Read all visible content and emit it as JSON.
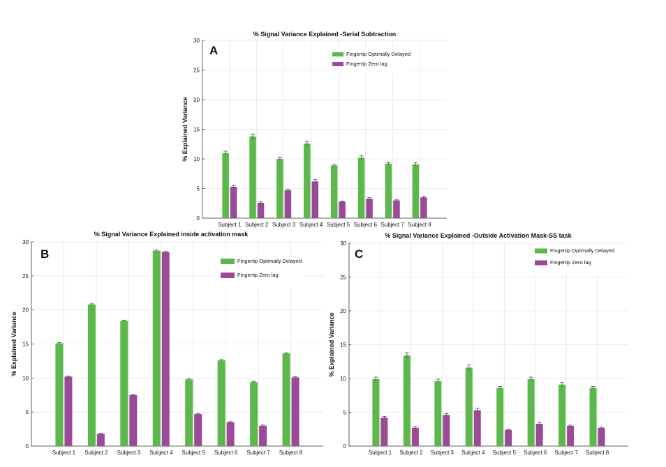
{
  "figure": {
    "colors": {
      "series_1": "#5cb84a",
      "series_2": "#9a4a97",
      "grid": "#dcdcdc",
      "axis": "#333333"
    }
  },
  "chart_data": [
    {
      "panel": "A",
      "type": "bar",
      "title": "% Signal Variance Explained -Serial Subtraction",
      "xlabel": "",
      "ylabel": "% Explained Variance",
      "ylim": [
        0,
        30
      ],
      "yticks": [
        0,
        5,
        10,
        15,
        20,
        25,
        30
      ],
      "grid": true,
      "legend_position": "top-right",
      "categories": [
        "Subject 1",
        "Subject 2",
        "Subject 3",
        "Subject 4",
        "Subject 5",
        "Subject 6",
        "Subject 7",
        "Subject 8"
      ],
      "series": [
        {
          "name": "Fingertip Optimally Delayed",
          "values": [
            11.0,
            13.8,
            10.0,
            12.6,
            8.9,
            10.2,
            9.2,
            9.1
          ],
          "errors": [
            0.3,
            0.4,
            0.3,
            0.4,
            0.2,
            0.3,
            0.2,
            0.3
          ]
        },
        {
          "name": "Fingertip Zero lag",
          "values": [
            5.3,
            2.6,
            4.7,
            6.2,
            2.8,
            3.3,
            3.0,
            3.5
          ],
          "errors": [
            0.2,
            0.2,
            0.2,
            0.3,
            0.1,
            0.2,
            0.1,
            0.2
          ]
        }
      ]
    },
    {
      "panel": "B",
      "type": "bar",
      "title": "% Signal Variance Explained inside activation mask",
      "xlabel": "",
      "ylabel": "% Explained Variance",
      "ylim": [
        0,
        30
      ],
      "yticks": [
        0,
        5,
        10,
        15,
        20,
        25,
        30
      ],
      "grid": true,
      "legend_position": "top-right",
      "categories": [
        "Subject 1",
        "Subject 2",
        "Subject 3",
        "Subject 4",
        "Subject 5",
        "Subject 6",
        "Subject 7",
        "Subject 8"
      ],
      "series": [
        {
          "name": "Fingertip Optimally Delayed",
          "values": [
            15.1,
            20.8,
            18.4,
            28.7,
            9.8,
            12.6,
            9.4,
            13.6
          ],
          "errors": [
            0.1,
            0.1,
            0.1,
            0.1,
            0.1,
            0.1,
            0.1,
            0.1
          ]
        },
        {
          "name": "Fingertip Zero lag",
          "values": [
            10.2,
            1.8,
            7.5,
            28.5,
            4.7,
            3.5,
            3.0,
            10.1
          ],
          "errors": [
            0.1,
            0.1,
            0.1,
            0.1,
            0.1,
            0.1,
            0.1,
            0.1
          ]
        }
      ]
    },
    {
      "panel": "C",
      "type": "bar",
      "title": "% Signal Variance Explained -Outside Activation Mask-SS task",
      "xlabel": "",
      "ylabel": "% Explained Variance",
      "ylim": [
        0,
        30
      ],
      "yticks": [
        0,
        5,
        10,
        15,
        20,
        25,
        30
      ],
      "grid": true,
      "legend_position": "top-right",
      "categories": [
        "Subject 1",
        "Subject 2",
        "Subject 3",
        "Subject 4",
        "Subject 5",
        "Subject 6",
        "Subject 7",
        "Subject 8"
      ],
      "series": [
        {
          "name": "Fingertip Optimally Delayed",
          "values": [
            9.9,
            13.4,
            9.6,
            11.6,
            8.6,
            9.9,
            9.1,
            8.6
          ],
          "errors": [
            0.3,
            0.4,
            0.3,
            0.4,
            0.2,
            0.3,
            0.3,
            0.2
          ]
        },
        {
          "name": "Fingertip Zero lag",
          "values": [
            4.2,
            2.7,
            4.6,
            5.3,
            2.4,
            3.3,
            3.0,
            2.7
          ],
          "errors": [
            0.2,
            0.2,
            0.2,
            0.3,
            0.1,
            0.2,
            0.1,
            0.1
          ]
        }
      ]
    }
  ]
}
